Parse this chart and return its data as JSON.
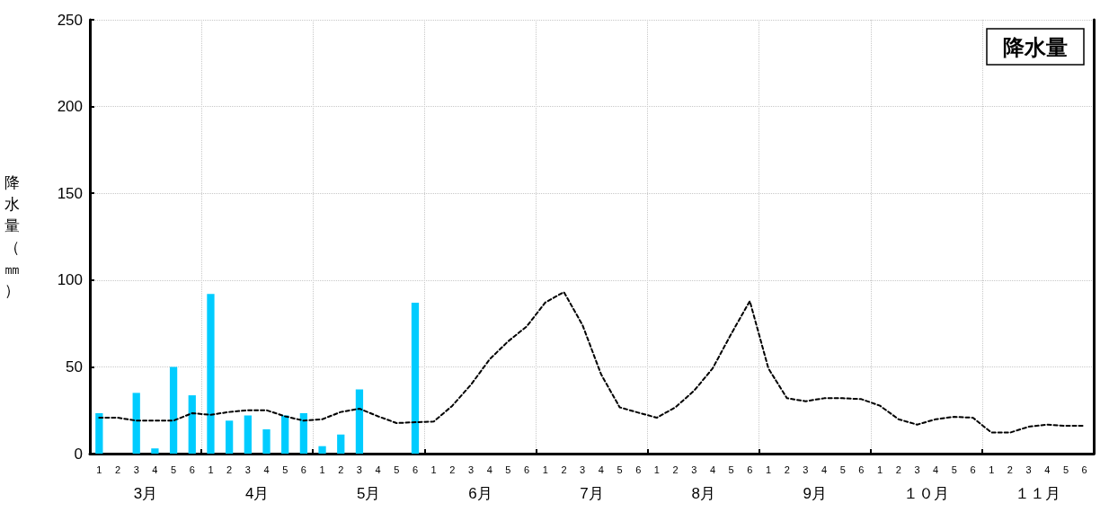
{
  "chart_data": {
    "type": "bar",
    "title": "降水量",
    "ylabel": "降水量（㎜）",
    "categories": [
      "1",
      "2",
      "3",
      "4",
      "5",
      "6",
      "1",
      "2",
      "3",
      "4",
      "5",
      "6",
      "1",
      "2",
      "3",
      "4",
      "5",
      "6",
      "1",
      "2",
      "3",
      "4",
      "5",
      "6",
      "1",
      "2",
      "3",
      "4",
      "5",
      "6",
      "1",
      "2",
      "3",
      "4",
      "5",
      "6",
      "1",
      "2",
      "3",
      "4",
      "5",
      "6",
      "1",
      "2",
      "3",
      "4",
      "5",
      "6",
      "1",
      "2",
      "3",
      "4",
      "5",
      "6"
    ],
    "annotations": [
      "3月",
      "4月",
      "5月",
      "6月",
      "7月",
      "8月",
      "9月",
      "１０月",
      "１１月"
    ],
    "series": [
      {
        "color": "#00ccff",
        "values": [
          23.3,
          0,
          35,
          3,
          50,
          33.6,
          92,
          19,
          22,
          14,
          22,
          23.3,
          4.3,
          11,
          37,
          0,
          0,
          87,
          null,
          null,
          null,
          null,
          null,
          null,
          null,
          null,
          null,
          null,
          null,
          null,
          null,
          null,
          null,
          null,
          null,
          null,
          null,
          null,
          null,
          null,
          null,
          null,
          null,
          null,
          null,
          null,
          null,
          null,
          null,
          null,
          null,
          null,
          null,
          null
        ]
      },
      {
        "type": "line",
        "color": "#000000",
        "line_style": "dashed",
        "marker": "none",
        "values": [
          20.7,
          20.7,
          19,
          19,
          19,
          23.3,
          22.4,
          24,
          25,
          25,
          21.5,
          19,
          19.8,
          24,
          25.9,
          21.5,
          17.6,
          18.1,
          18.5,
          27.6,
          39.7,
          54.3,
          64.7,
          73.3,
          87.1,
          93.1,
          74.1,
          45.7,
          26.7,
          23.6,
          20.7,
          26.7,
          36.2,
          49.1,
          69,
          87.9,
          49.1,
          31.9,
          30.2,
          31.9,
          31.9,
          31.4,
          27.6,
          19.8,
          16.7,
          19.8,
          21.2,
          20.7,
          12.1,
          12.1,
          15.5,
          16.7,
          16,
          16
        ]
      }
    ],
    "ylim": [
      0,
      250
    ],
    "yticks": [
      0,
      50,
      100,
      150,
      200,
      250
    ],
    "grid": true
  }
}
